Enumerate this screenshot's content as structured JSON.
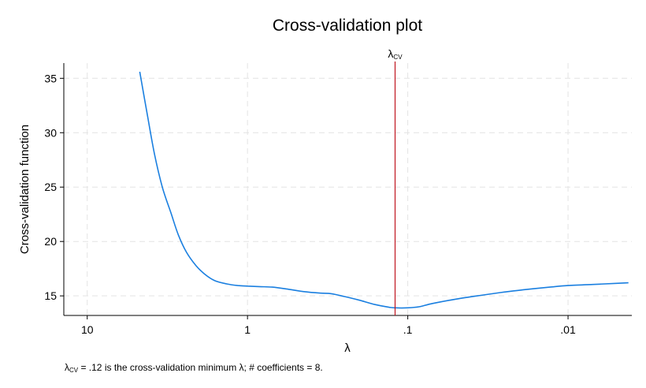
{
  "chart_data": {
    "type": "line",
    "title": "Cross-validation plot",
    "xlabel": "λ",
    "ylabel": "Cross-validation function",
    "x_scale": "log-reversed",
    "xlim": [
      14,
      0.004
    ],
    "ylim": [
      13.2,
      36.4
    ],
    "x_ticks": [
      10,
      1,
      0.1,
      0.01
    ],
    "x_tick_labels": [
      "10",
      "1",
      ".1",
      ".01"
    ],
    "y_ticks": [
      15,
      20,
      25,
      30,
      35
    ],
    "y_tick_labels": [
      "15",
      "20",
      "25",
      "30",
      "35"
    ],
    "grid": true,
    "legend": "none",
    "series": [
      {
        "color": "#1a7fe0",
        "x": [
          4.7,
          4.2,
          3.8,
          3.4,
          3.0,
          2.7,
          2.4,
          2.1,
          1.85,
          1.6,
          1.35,
          1.15,
          1.0,
          0.85,
          0.7,
          0.55,
          0.45,
          0.35,
          0.3,
          0.25,
          0.2,
          0.16,
          0.13,
          0.12,
          0.1,
          0.085,
          0.07,
          0.05,
          0.035,
          0.025,
          0.018,
          0.013,
          0.01,
          0.007,
          0.005,
          0.0042
        ],
        "values": [
          35.6,
          31.5,
          28.0,
          25.0,
          22.6,
          20.6,
          19.0,
          17.8,
          17.0,
          16.4,
          16.1,
          15.95,
          15.9,
          15.85,
          15.8,
          15.6,
          15.4,
          15.25,
          15.2,
          14.95,
          14.6,
          14.2,
          13.95,
          13.9,
          13.9,
          14.0,
          14.3,
          14.7,
          15.05,
          15.35,
          15.6,
          15.8,
          15.95,
          16.05,
          16.15,
          16.2
        ]
      }
    ],
    "reference_line": {
      "x": 0.12,
      "label": "λ",
      "label_sub": "CV",
      "color": "#c0151f"
    },
    "note": {
      "symbol": "λ",
      "symbol_sub": "CV",
      "text": " = .12 is the cross-validation minimum λ; # coefficients = 8."
    }
  }
}
